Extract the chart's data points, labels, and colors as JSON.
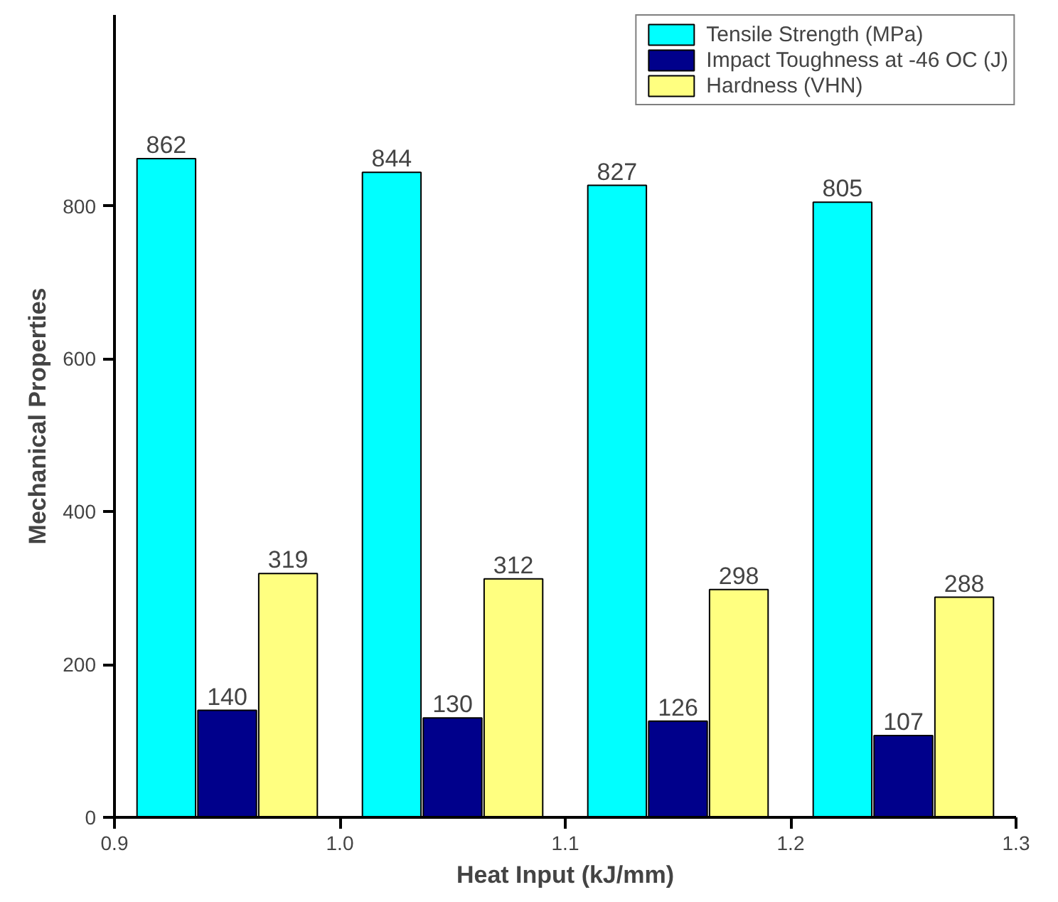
{
  "chart_data": {
    "type": "bar",
    "xlabel": "Heat Input (kJ/mm)",
    "ylabel": "Mechanical Properties",
    "xlim": [
      0.9,
      1.3
    ],
    "xticks": [
      0.9,
      {
        "value": 1.0,
        "label": "1.0"
      },
      1.1,
      1.2,
      1.3
    ],
    "ylim": [
      0,
      1050
    ],
    "yticks": [
      0,
      200,
      400,
      600,
      800
    ],
    "series": [
      {
        "name": "Tensile Strength (MPa)",
        "color": "#00ffff",
        "x": [
          0.923,
          1.023,
          1.123,
          1.223
        ],
        "values": [
          862,
          844,
          827,
          805
        ]
      },
      {
        "name": "Impact Toughness at -46 OC (J)",
        "color": "#00008b",
        "x": [
          0.95,
          1.05,
          1.15,
          1.25
        ],
        "values": [
          140,
          130,
          126,
          107
        ]
      },
      {
        "name": "Hardness (VHN)",
        "color": "#ffff80",
        "x": [
          0.977,
          1.077,
          1.177,
          1.277
        ],
        "values": [
          319,
          312,
          298,
          288
        ]
      }
    ],
    "data_labels": true,
    "grid": false,
    "legend": "top right"
  }
}
